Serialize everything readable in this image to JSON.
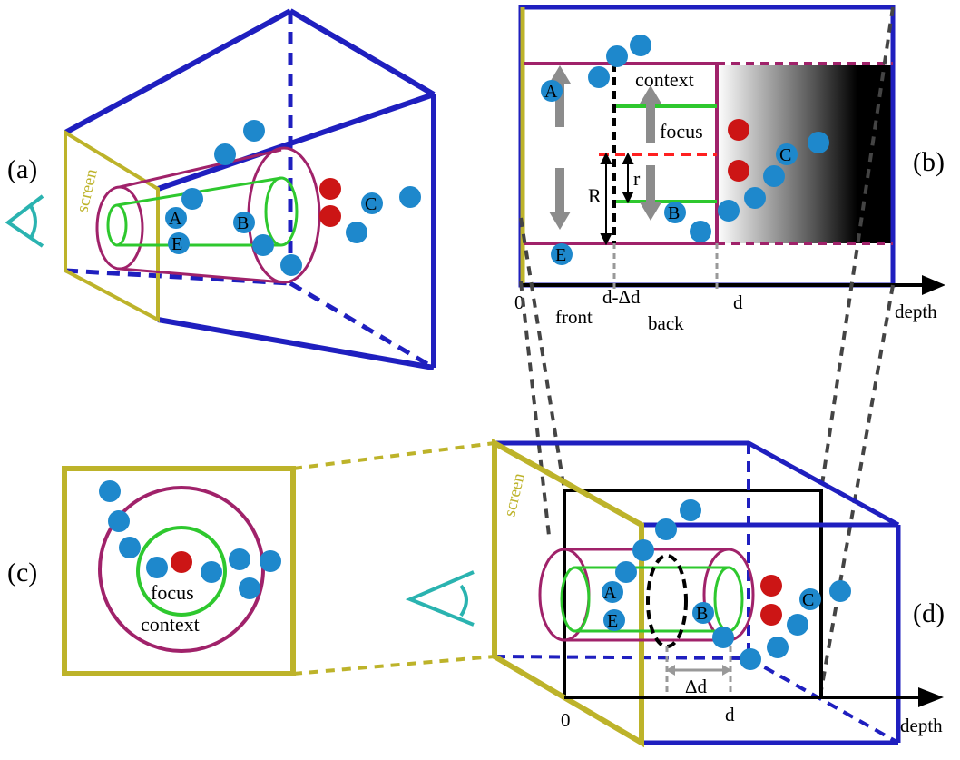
{
  "panels": {
    "a": {
      "label": "(a)",
      "screen": "screen",
      "points": {
        "a": "A",
        "b": "B",
        "c": "C",
        "e": "E"
      }
    },
    "b": {
      "label": "(b)",
      "context": "context",
      "focus": "focus",
      "r_small": "r",
      "r_big": "R",
      "points": {
        "a": "A",
        "b": "B",
        "c": "C",
        "e": "E"
      },
      "axis": {
        "zero": "0",
        "d_minus": "d-Δd",
        "d": "d",
        "front": "front",
        "back": "back",
        "depth": "depth"
      }
    },
    "c": {
      "label": "(c)",
      "focus": "focus",
      "context": "context"
    },
    "d": {
      "label": "(d)",
      "screen": "screen",
      "points": {
        "a": "A",
        "b": "B",
        "c": "C",
        "e": "E"
      },
      "delta": "Δd",
      "axis": {
        "zero": "0",
        "d": "d",
        "depth": "depth"
      }
    }
  },
  "colors": {
    "frustum": "#1f1fbf",
    "screen": "#bdb32a",
    "context": "#a0226a",
    "focus": "#2ec82e",
    "point": "#1e88cc",
    "selected": "#cc1515",
    "eye": "#2ab3b0",
    "arrow": "#8c8c8c",
    "dashed_red": "#ff2020"
  }
}
